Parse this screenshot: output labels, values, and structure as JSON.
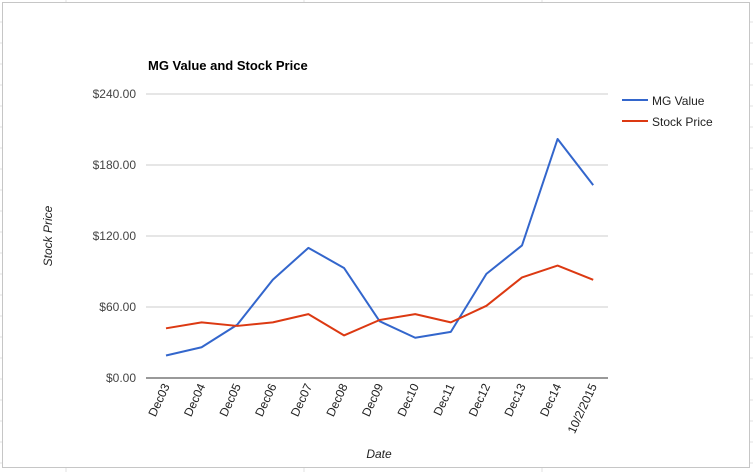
{
  "chart_data": {
    "type": "line",
    "title": "MG Value and Stock Price",
    "xlabel": "Date",
    "ylabel": "Stock Price",
    "categories": [
      "Dec03",
      "Dec04",
      "Dec05",
      "Dec06",
      "Dec07",
      "Dec08",
      "Dec09",
      "Dec10",
      "Dec11",
      "Dec12",
      "Dec13",
      "Dec14",
      "10/2/2015"
    ],
    "y_ticks": [
      "$0.00",
      "$60.00",
      "$120.00",
      "$180.00",
      "$240.00"
    ],
    "ylim": [
      0,
      240
    ],
    "grid": true,
    "legend_position": "right",
    "series": [
      {
        "name": "MG Value",
        "color": "#3366cc",
        "values": [
          19,
          26,
          45,
          83,
          110,
          93,
          48,
          34,
          39,
          88,
          112,
          202,
          163
        ]
      },
      {
        "name": "Stock Price",
        "color": "#dc3912",
        "values": [
          42,
          47,
          44,
          47,
          54,
          36,
          49,
          54,
          47,
          61,
          85,
          95,
          83
        ]
      }
    ]
  }
}
